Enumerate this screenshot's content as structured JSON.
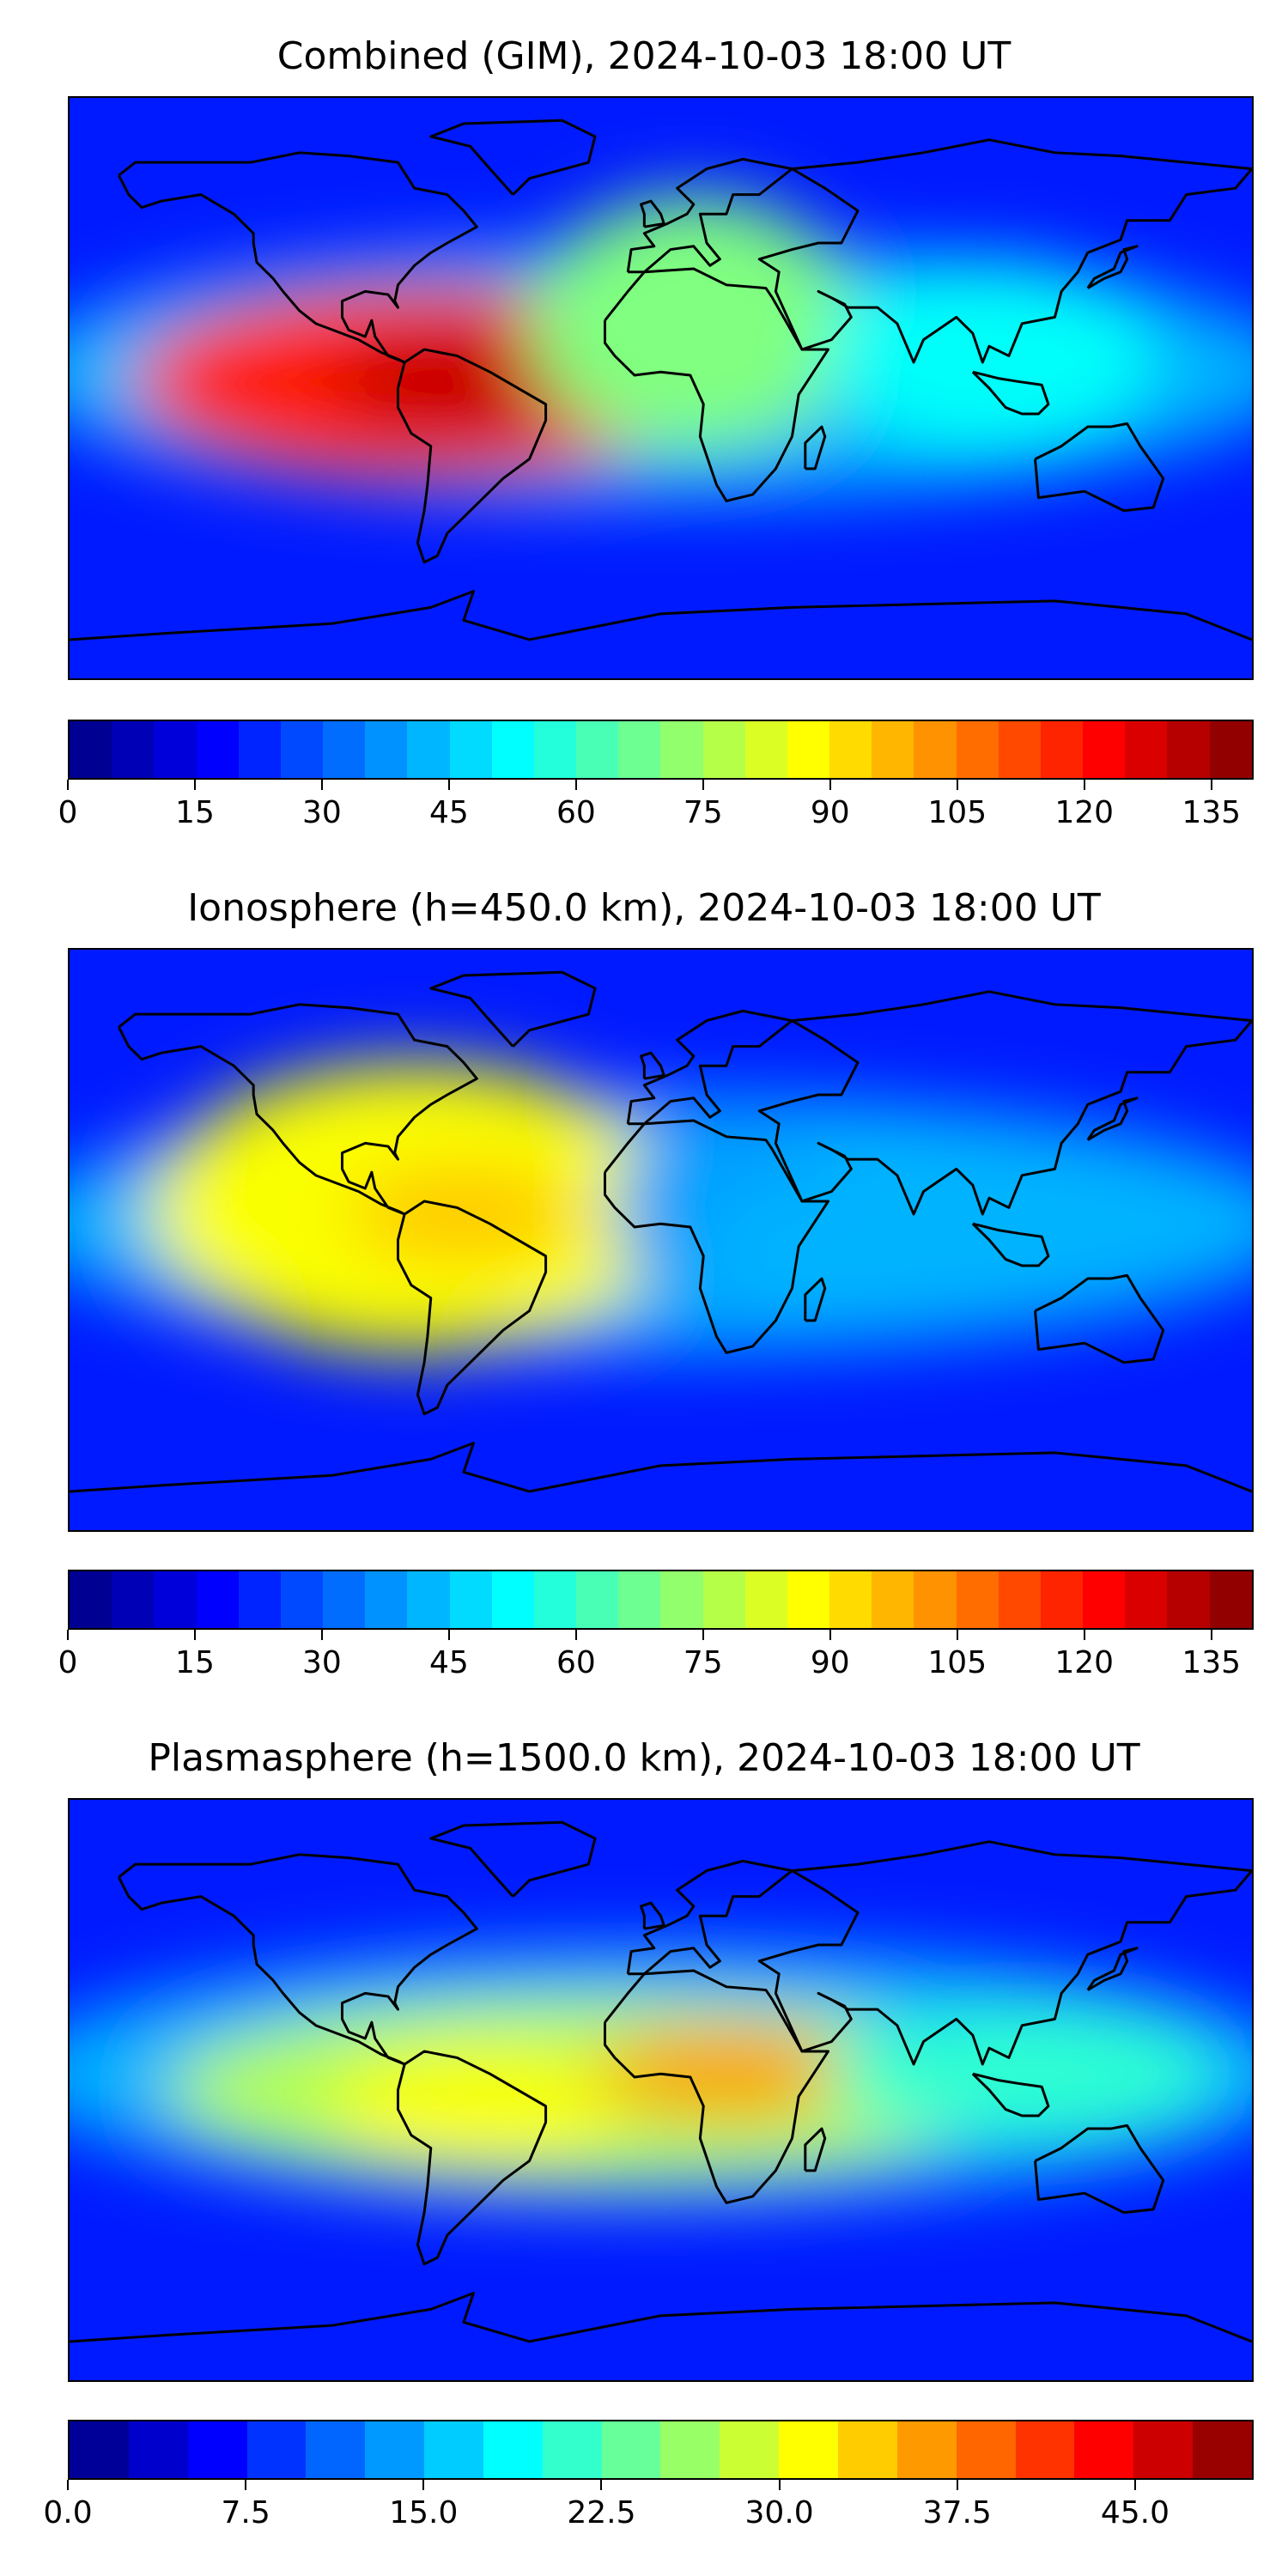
{
  "panels": [
    {
      "title": "Combined (GIM), 2024-10-03 18:00 UT",
      "colorbar": {
        "min": 0,
        "max": 140,
        "steps": 28,
        "ticks": [
          "0",
          "15",
          "30",
          "45",
          "60",
          "75",
          "90",
          "105",
          "120",
          "135"
        ],
        "tick_values": [
          0,
          15,
          30,
          45,
          60,
          75,
          90,
          105,
          120,
          135
        ]
      },
      "max_region": "South America / Atlantic",
      "blobs": [
        {
          "lon": -70,
          "lat": 2,
          "rx": 90,
          "ry": 30,
          "value": 0.85
        },
        {
          "lon": -55,
          "lat": 2,
          "rx": 45,
          "ry": 18,
          "value": 0.93
        },
        {
          "lon": 10,
          "lat": 20,
          "rx": 50,
          "ry": 40,
          "value": 0.5
        },
        {
          "lon": 100,
          "lat": 10,
          "rx": 50,
          "ry": 30,
          "value": 0.38
        }
      ]
    },
    {
      "title": "Ionosphere  (h=450.0 km), 2024-10-03 18:00 UT",
      "colorbar": {
        "min": 0,
        "max": 140,
        "steps": 28,
        "ticks": [
          "0",
          "15",
          "30",
          "45",
          "60",
          "75",
          "90",
          "105",
          "120",
          "135"
        ],
        "tick_values": [
          0,
          15,
          30,
          45,
          60,
          75,
          90,
          105,
          120,
          135
        ]
      },
      "blobs": [
        {
          "lon": -75,
          "lat": 10,
          "rx": 80,
          "ry": 45,
          "value": 0.62
        },
        {
          "lon": -60,
          "lat": 8,
          "rx": 35,
          "ry": 15,
          "value": 0.68
        },
        {
          "lon": 20,
          "lat": 10,
          "rx": 35,
          "ry": 30,
          "value": 0.28
        },
        {
          "lon": 60,
          "lat": 0,
          "rx": 50,
          "ry": 20,
          "value": 0.3
        }
      ]
    },
    {
      "title": "Plasmasphere (h=1500.0 km), 2024-10-03 18:00 UT",
      "colorbar": {
        "min": 0,
        "max": 50,
        "steps": 20,
        "ticks": [
          "0.0",
          "7.5",
          "15.0",
          "22.5",
          "30.0",
          "37.5",
          "45.0"
        ],
        "tick_values": [
          0,
          7.5,
          15,
          22.5,
          30,
          37.5,
          45
        ]
      },
      "blobs": [
        {
          "lon": -20,
          "lat": 0,
          "rx": 130,
          "ry": 28,
          "value": 0.55
        },
        {
          "lon": -55,
          "lat": -5,
          "rx": 45,
          "ry": 18,
          "value": 0.62
        },
        {
          "lon": 20,
          "lat": 5,
          "rx": 40,
          "ry": 14,
          "value": 0.72
        },
        {
          "lon": 110,
          "lat": 5,
          "rx": 60,
          "ry": 20,
          "value": 0.42
        }
      ]
    }
  ],
  "map_extent": {
    "lon": [
      -180,
      180
    ],
    "lat": [
      -90,
      90
    ]
  },
  "colormap": "jet",
  "coastline_color": "#000000"
}
